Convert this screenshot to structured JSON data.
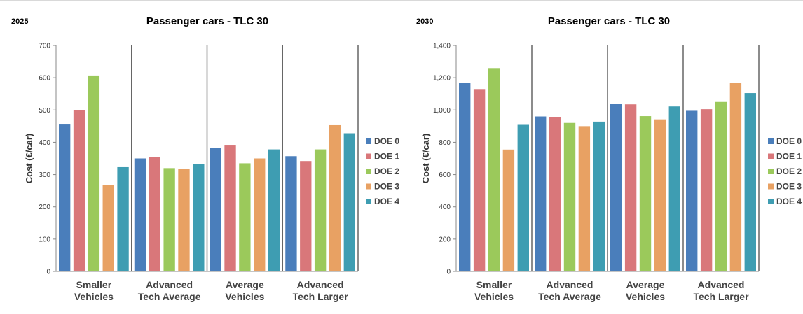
{
  "colors": [
    "#4a7ebb",
    "#d9777a",
    "#9bc95b",
    "#e8a163",
    "#3e9db2"
  ],
  "chart_data": [
    {
      "type": "bar",
      "year_label": "2025",
      "title": "Passenger cars - TLC 30",
      "ylabel": "Cost (€/car)",
      "xlabel": "",
      "ylim": [
        0,
        700
      ],
      "yticks": [
        "0",
        "100",
        "200",
        "300",
        "400",
        "500",
        "600",
        "700"
      ],
      "ytick_values": [
        0,
        100,
        200,
        300,
        400,
        500,
        600,
        700
      ],
      "categories": [
        [
          "Smaller",
          "Vehicles"
        ],
        [
          "Advanced",
          "Tech Average"
        ],
        [
          "Average",
          "Vehicles"
        ],
        [
          "Advanced",
          "Tech Larger"
        ]
      ],
      "legend_position": "right",
      "grid": false,
      "series": [
        {
          "name": "DOE 0",
          "values": [
            455,
            350,
            383,
            357
          ]
        },
        {
          "name": "DOE 1",
          "values": [
            500,
            355,
            390,
            342
          ]
        },
        {
          "name": "DOE 2",
          "values": [
            607,
            320,
            335,
            378
          ]
        },
        {
          "name": "DOE 3",
          "values": [
            267,
            318,
            350,
            453
          ]
        },
        {
          "name": "DOE 4",
          "values": [
            323,
            333,
            378,
            428
          ]
        }
      ]
    },
    {
      "type": "bar",
      "year_label": "2030",
      "title": "Passenger cars - TLC 30",
      "ylabel": "Cost (€/car)",
      "xlabel": "",
      "ylim": [
        0,
        1400
      ],
      "yticks": [
        "0",
        "200",
        "400",
        "600",
        "800",
        "1,000",
        "1,200",
        "1,400"
      ],
      "ytick_values": [
        0,
        200,
        400,
        600,
        800,
        1000,
        1200,
        1400
      ],
      "categories": [
        [
          "Smaller",
          "Vehicles"
        ],
        [
          "Advanced",
          "Tech Average"
        ],
        [
          "Average",
          "Vehicles"
        ],
        [
          "Advanced",
          "Tech Larger"
        ]
      ],
      "legend_position": "right",
      "grid": false,
      "series": [
        {
          "name": "DOE 0",
          "values": [
            1170,
            960,
            1040,
            995
          ]
        },
        {
          "name": "DOE 1",
          "values": [
            1130,
            955,
            1035,
            1005
          ]
        },
        {
          "name": "DOE 2",
          "values": [
            1260,
            920,
            962,
            1050
          ]
        },
        {
          "name": "DOE 3",
          "values": [
            755,
            900,
            942,
            1170
          ]
        },
        {
          "name": "DOE 4",
          "values": [
            908,
            928,
            1022,
            1105
          ]
        }
      ]
    }
  ]
}
